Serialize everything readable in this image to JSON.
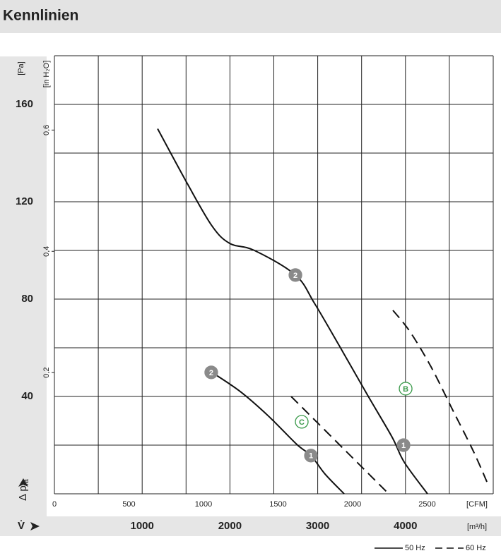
{
  "chart_data": {
    "type": "line",
    "title": "Kennlinien",
    "y_unit": "[Pa]",
    "y2_unit": "[in H₂O]",
    "y_label": "Δ p",
    "y_label_sub": "fa",
    "x_label": "V̇",
    "x_unit": "[m³/h]",
    "x2_unit": "[CFM]",
    "xlim": [
      0,
      5000
    ],
    "xticks": [
      1000,
      2000,
      3000,
      4000
    ],
    "xgrid": [
      0,
      500,
      1000,
      1500,
      2000,
      2500,
      3000,
      3500,
      4000,
      4500,
      5000
    ],
    "x2lim": [
      0,
      2943
    ],
    "x2ticks": [
      0,
      500,
      1000,
      1500,
      2000,
      2500
    ],
    "ylim": [
      0,
      180
    ],
    "yticks": [
      40,
      80,
      120,
      160
    ],
    "ygrid": [
      0,
      20,
      40,
      60,
      80,
      100,
      120,
      140,
      160,
      180
    ],
    "y2lim": [
      0,
      0.7226
    ],
    "y2ticks": [
      {
        "value": 0.2,
        "label": "0,2"
      },
      {
        "value": 0.4,
        "label": "0,4"
      },
      {
        "value": 0.6,
        "label": "0,6"
      }
    ],
    "series": [
      {
        "dash": false,
        "color": "#111",
        "x": [
          1176,
          1514,
          1795,
          1997,
          2279,
          2746,
          2963,
          3245,
          3567,
          3849,
          3986,
          4251
        ],
        "values": [
          150,
          127.5,
          110.1,
          102.9,
          100,
          89.9,
          78.3,
          60.9,
          40.6,
          23.2,
          13.0,
          0
        ]
      },
      {
        "dash": false,
        "color": "#111",
        "x": [
          1795,
          2118,
          2440,
          2762,
          2923,
          3084,
          3301
        ],
        "values": [
          49.9,
          42.0,
          31.9,
          20.3,
          15.7,
          8.1,
          0
        ]
      },
      {
        "dash": true,
        "color": "#111",
        "x": [
          3857,
          4050,
          4291,
          4533,
          4775,
          4952
        ],
        "values": [
          75.4,
          66.7,
          52.2,
          34.8,
          17.4,
          2.9
        ]
      },
      {
        "dash": true,
        "color": "#111",
        "x": [
          2697,
          3003,
          3325,
          3567,
          3792
        ],
        "values": [
          40,
          29,
          17.4,
          8.7,
          0.6
        ]
      }
    ],
    "markers": [
      {
        "label": "2",
        "x": 2746,
        "y": 89.9,
        "style": "filled"
      },
      {
        "label": "1",
        "x": 3978,
        "y": 20,
        "style": "filled"
      },
      {
        "label": "2",
        "x": 1787,
        "y": 49.9,
        "style": "filled"
      },
      {
        "label": "1",
        "x": 2923,
        "y": 15.7,
        "style": "filled"
      },
      {
        "label": "B",
        "x": 4002,
        "y": 43.2,
        "style": "outline"
      },
      {
        "label": "C",
        "x": 2818,
        "y": 29.6,
        "style": "outline"
      }
    ],
    "legend": [
      {
        "label": "50 Hz",
        "dash": false
      },
      {
        "label": "60 Hz",
        "dash": true
      }
    ]
  }
}
